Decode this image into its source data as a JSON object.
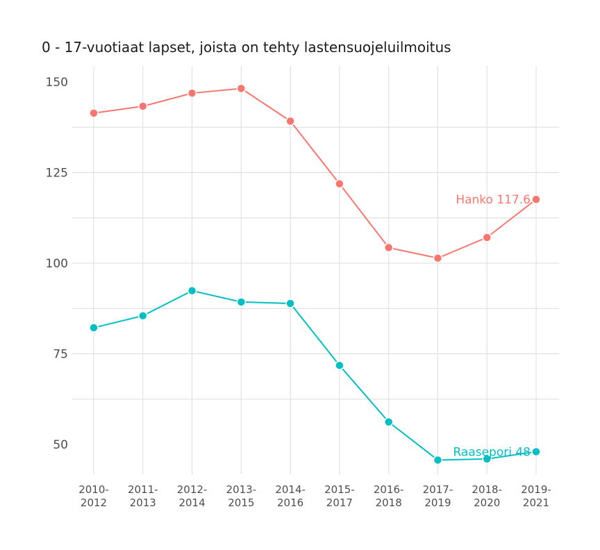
{
  "chart_data": {
    "type": "line",
    "title": "0 - 17-vuotiaat lapset, joista on tehty lastensuojeluilmoitus",
    "xlabel": "",
    "ylabel": "",
    "categories": [
      [
        "2010-",
        "2012"
      ],
      [
        "2011-",
        "2013"
      ],
      [
        "2012-",
        "2014"
      ],
      [
        "2013-",
        "2015"
      ],
      [
        "2014-",
        "2016"
      ],
      [
        "2015-",
        "2017"
      ],
      [
        "2016-",
        "2018"
      ],
      [
        "2017-",
        "2019"
      ],
      [
        "2018-",
        "2020"
      ],
      [
        "2019-",
        "2021"
      ]
    ],
    "ylim": [
      43,
      152
    ],
    "yticks": [
      50,
      75,
      100,
      125,
      150
    ],
    "grid": true,
    "series": [
      {
        "name": "Hanko",
        "end_label": "Hanko 117.6",
        "color": "#F8766D",
        "values": [
          141.4,
          143.3,
          146.9,
          148.2,
          139.2,
          121.9,
          104.3,
          101.4,
          107.1,
          117.6
        ]
      },
      {
        "name": "Raasepori",
        "end_label": "Raasepori 48",
        "color": "#00BFC4",
        "values": [
          82.2,
          85.5,
          92.4,
          89.3,
          88.9,
          71.8,
          56.2,
          45.7,
          46.0,
          48.0
        ]
      }
    ]
  }
}
